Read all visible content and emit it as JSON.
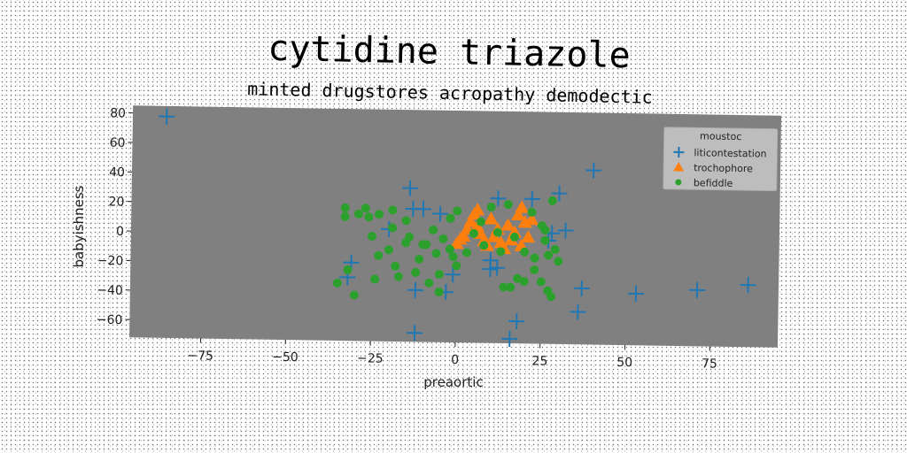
{
  "chart_data": {
    "type": "scatter",
    "title": "cytidine triazole",
    "subtitle": "minted drugstores acropathy demodectic",
    "xlabel": "preaortic",
    "ylabel": "babyishness",
    "xlim": [
      -96,
      95
    ],
    "ylim": [
      -72,
      85
    ],
    "xticks": [
      -75,
      -50,
      -25,
      0,
      25,
      50,
      75
    ],
    "yticks": [
      -60,
      -40,
      -20,
      0,
      20,
      40,
      60,
      80
    ],
    "xtick_labels": [
      "−75",
      "−50",
      "−25",
      "0",
      "25",
      "50",
      "75"
    ],
    "ytick_labels": [
      "−60",
      "−40",
      "−20",
      "0",
      "20",
      "40",
      "60",
      "80"
    ],
    "grid": false,
    "legend": {
      "title": "moustoc",
      "placement": "top-right"
    },
    "series": [
      {
        "name": "liticontestation",
        "marker": "plus",
        "color": "#1f77b4",
        "points": [
          [
            -86,
            78
          ],
          [
            40,
            46
          ],
          [
            -14,
            32
          ],
          [
            -10,
            18
          ],
          [
            -13,
            18
          ],
          [
            12,
            26
          ],
          [
            22,
            26
          ],
          [
            30,
            30
          ],
          [
            -20,
            4
          ],
          [
            28,
            3
          ],
          [
            32,
            5
          ],
          [
            27,
            -2
          ],
          [
            -5,
            15
          ],
          [
            -31,
            -19
          ],
          [
            -32,
            -29
          ],
          [
            -1,
            -26
          ],
          [
            10,
            -16
          ],
          [
            12,
            -21
          ],
          [
            10,
            -22
          ],
          [
            -12,
            -37
          ],
          [
            -3,
            -38
          ],
          [
            37,
            -34
          ],
          [
            53,
            -37
          ],
          [
            71,
            -34
          ],
          [
            86,
            -30
          ],
          [
            36,
            -50
          ],
          [
            18,
            -57
          ],
          [
            -12,
            -66
          ],
          [
            16,
            -69
          ]
        ]
      },
      {
        "name": "trochophore",
        "marker": "triangle",
        "color": "#ff7f0e",
        "points": [
          [
            0,
            -5
          ],
          [
            2,
            0
          ],
          [
            3,
            5
          ],
          [
            4,
            10
          ],
          [
            5,
            15
          ],
          [
            6,
            7
          ],
          [
            7,
            2
          ],
          [
            8,
            -3
          ],
          [
            9,
            -6
          ],
          [
            10,
            12
          ],
          [
            11,
            0
          ],
          [
            12,
            5
          ],
          [
            13,
            -4
          ],
          [
            14,
            -8
          ],
          [
            15,
            8
          ],
          [
            16,
            -2
          ],
          [
            17,
            3
          ],
          [
            18,
            15
          ],
          [
            19,
            -6
          ],
          [
            20,
            10
          ],
          [
            21,
            0
          ],
          [
            19,
            20
          ],
          [
            22,
            12
          ],
          [
            6,
            18
          ],
          [
            1,
            -2
          ]
        ]
      },
      {
        "name": "befiddle",
        "marker": "circle",
        "color": "#2ca02c",
        "points": [
          [
            -33,
            18
          ],
          [
            -33,
            12
          ],
          [
            -29,
            14
          ],
          [
            -27,
            18
          ],
          [
            -26,
            12
          ],
          [
            -23,
            14
          ],
          [
            -19,
            17
          ],
          [
            -25,
            -1
          ],
          [
            -15,
            10
          ],
          [
            -14,
            -1
          ],
          [
            -15,
            -5
          ],
          [
            -20,
            -10
          ],
          [
            -23,
            -14
          ],
          [
            -18,
            -21
          ],
          [
            -17,
            -28
          ],
          [
            -24,
            -30
          ],
          [
            -32,
            -24
          ],
          [
            -35,
            -33
          ],
          [
            -30,
            -41
          ],
          [
            -9,
            -6
          ],
          [
            -7,
            4
          ],
          [
            -4,
            -2
          ],
          [
            -2,
            12
          ],
          [
            -1,
            -14
          ],
          [
            0,
            -20
          ],
          [
            -5,
            -26
          ],
          [
            -8,
            -32
          ],
          [
            -5,
            -38
          ],
          [
            -12,
            -25
          ],
          [
            -11,
            -16
          ],
          [
            -6,
            -12
          ],
          [
            -2,
            -9
          ],
          [
            3,
            -11
          ],
          [
            8,
            -6
          ],
          [
            10,
            20
          ],
          [
            15,
            22
          ],
          [
            22,
            17
          ],
          [
            25,
            8
          ],
          [
            26,
            -2
          ],
          [
            27,
            -12
          ],
          [
            23,
            -22
          ],
          [
            18,
            -28
          ],
          [
            16,
            -34
          ],
          [
            14,
            -34
          ],
          [
            25,
            -30
          ],
          [
            27,
            -36
          ],
          [
            28,
            -40
          ],
          [
            30,
            -16
          ],
          [
            20,
            -10
          ],
          [
            23,
            -14
          ],
          [
            28,
            25
          ],
          [
            26,
            5
          ],
          [
            12,
            3
          ],
          [
            5,
            2
          ],
          [
            7,
            10
          ],
          [
            0,
            17
          ],
          [
            -10,
            -6
          ],
          [
            -19,
            5
          ],
          [
            13,
            -10
          ],
          [
            17,
            0
          ],
          [
            20,
            -30
          ],
          [
            29,
            -8
          ]
        ]
      }
    ]
  }
}
